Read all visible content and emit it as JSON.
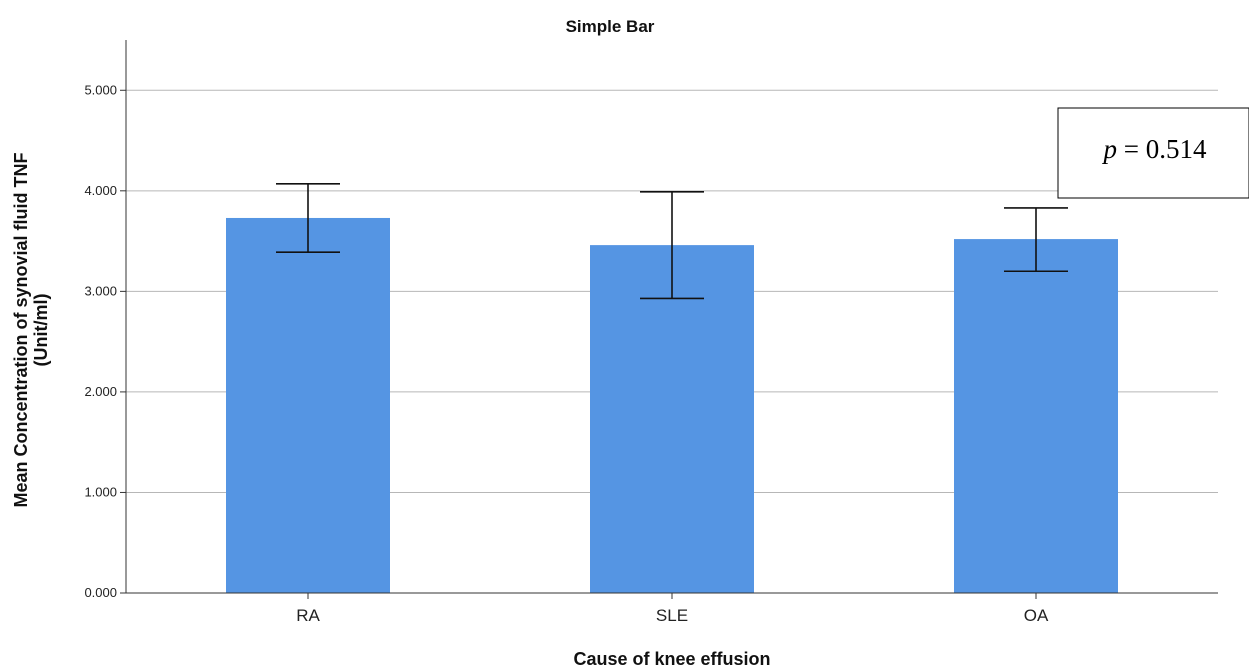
{
  "chart_data": {
    "type": "bar",
    "title": "Simple Bar",
    "xlabel": "Cause of knee effusion",
    "ylabel_line1": "Mean Concentration of synovial fluid TNF",
    "ylabel_line2": "(Unit/ml)",
    "categories": [
      "RA",
      "SLE",
      "OA"
    ],
    "values": [
      3.73,
      3.46,
      3.52
    ],
    "error_low": [
      3.39,
      2.93,
      3.2
    ],
    "error_high": [
      4.07,
      3.99,
      3.83
    ],
    "ylim": [
      0,
      5.5
    ],
    "yticks": [
      0,
      1,
      2,
      3,
      4,
      5
    ],
    "ytick_labels": [
      "0.000",
      "1.000",
      "2.000",
      "3.000",
      "4.000",
      "5.000"
    ],
    "grid": true,
    "bar_color": "#5595e3",
    "annotation": {
      "italic": "p",
      "text": " = 0.514"
    }
  }
}
